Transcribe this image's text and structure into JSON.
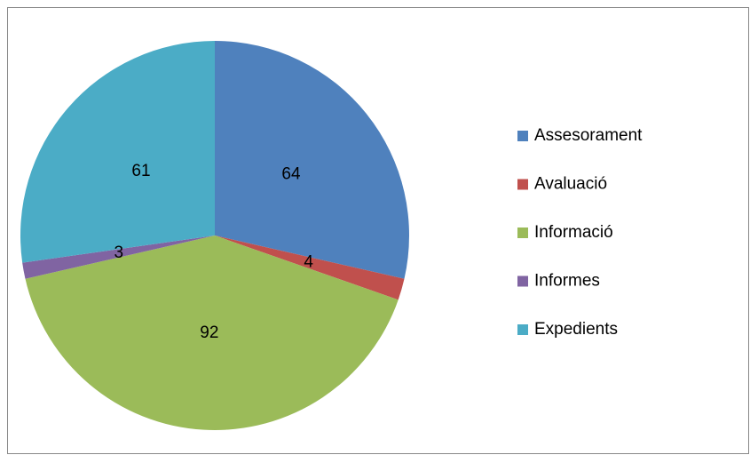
{
  "chart_data": {
    "type": "pie",
    "categories": [
      "Assesorament",
      "Avaluació",
      "Informació",
      "Informes",
      "Expedients"
    ],
    "values": [
      64,
      4,
      92,
      3,
      61
    ],
    "colors": [
      "#4f81bd",
      "#c0504d",
      "#9bbb59",
      "#8064a2",
      "#4bacc6"
    ],
    "legend": "right"
  }
}
